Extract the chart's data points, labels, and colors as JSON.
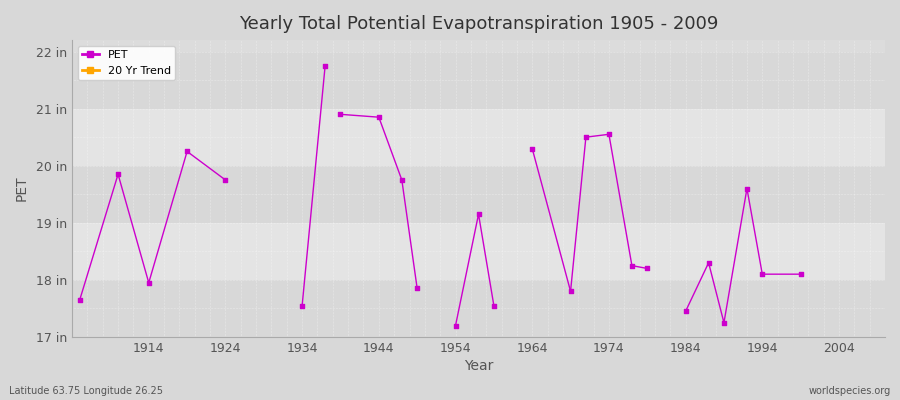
{
  "title": "Yearly Total Potential Evapotranspiration 1905 - 2009",
  "xlabel": "Year",
  "ylabel": "PET",
  "background_color": "#d8d8d8",
  "plot_bg_color": "#dcdcdc",
  "line_color": "#cc00cc",
  "trend_color": "#ffa500",
  "ylim": [
    17.0,
    22.2
  ],
  "xlim": [
    1904,
    2010
  ],
  "ytick_labels": [
    "17 in",
    "18 in",
    "19 in",
    "20 in",
    "21 in",
    "22 in"
  ],
  "ytick_values": [
    17,
    18,
    19,
    20,
    21,
    22
  ],
  "xtick_values": [
    1914,
    1924,
    1934,
    1944,
    1954,
    1964,
    1974,
    1984,
    1994,
    2004
  ],
  "footer_left": "Latitude 63.75 Longitude 26.25",
  "footer_right": "worldspecies.org",
  "title_fontsize": 13,
  "segments": [
    [
      [
        1905,
        17.65
      ],
      [
        1910,
        19.85
      ],
      [
        1914,
        17.95
      ],
      [
        1919,
        20.25
      ],
      [
        1924,
        19.75
      ]
    ],
    [
      [
        1934,
        17.55
      ],
      [
        1937,
        21.75
      ]
    ],
    [
      [
        1939,
        20.9
      ],
      [
        1944,
        20.85
      ],
      [
        1947,
        19.75
      ],
      [
        1949,
        17.85
      ]
    ],
    [
      [
        1954,
        17.2
      ],
      [
        1957,
        19.15
      ],
      [
        1959,
        17.55
      ]
    ],
    [
      [
        1964,
        20.3
      ],
      [
        1969,
        17.8
      ]
    ],
    [
      [
        1969,
        17.8
      ],
      [
        1971,
        20.5
      ],
      [
        1974,
        20.55
      ],
      [
        1977,
        18.25
      ],
      [
        1979,
        18.2
      ]
    ],
    [
      [
        1984,
        17.45
      ],
      [
        1987,
        18.3
      ],
      [
        1989,
        17.25
      ],
      [
        1992,
        19.6
      ],
      [
        1994,
        18.1
      ],
      [
        1999,
        18.1
      ]
    ]
  ],
  "isolated_points": [
    [
      1905,
      17.65
    ],
    [
      1910,
      19.85
    ],
    [
      1914,
      17.95
    ],
    [
      1919,
      20.25
    ],
    [
      1924,
      19.75
    ],
    [
      1934,
      17.55
    ],
    [
      1937,
      21.75
    ],
    [
      1939,
      20.9
    ],
    [
      1944,
      20.85
    ],
    [
      1947,
      19.75
    ],
    [
      1949,
      17.85
    ],
    [
      1954,
      17.2
    ],
    [
      1957,
      19.15
    ],
    [
      1959,
      17.55
    ],
    [
      1964,
      20.3
    ],
    [
      1969,
      17.8
    ],
    [
      1971,
      20.5
    ],
    [
      1974,
      20.55
    ],
    [
      1977,
      18.25
    ],
    [
      1979,
      18.2
    ],
    [
      1984,
      17.45
    ],
    [
      1987,
      18.3
    ],
    [
      1989,
      17.25
    ],
    [
      1992,
      19.6
    ],
    [
      1994,
      18.1
    ],
    [
      1999,
      18.1
    ]
  ],
  "band_colors": [
    "#d8d8d8",
    "#e4e4e4"
  ],
  "band_edges": [
    17.0,
    18.0,
    19.0,
    20.0,
    21.0,
    22.0
  ]
}
